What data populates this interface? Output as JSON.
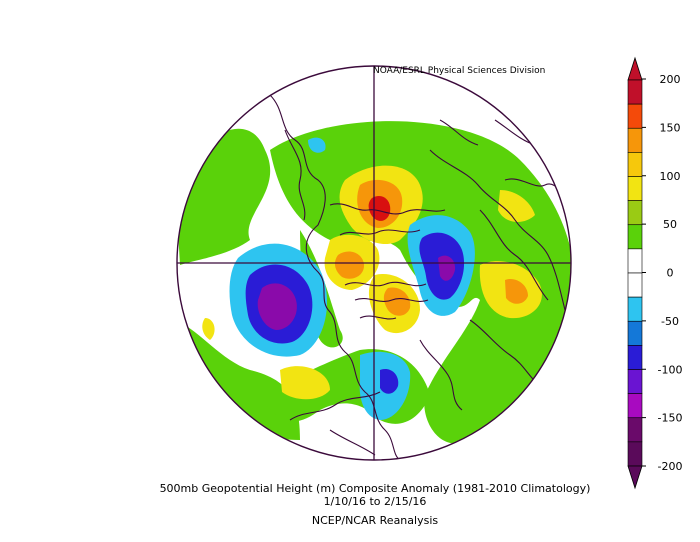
{
  "credit": "NOAA/ESRL Physical Sciences Division",
  "caption": {
    "line1": "500mb Geopotential Height (m) Composite Anomaly (1981-2010 Climatology)",
    "line2": "1/10/16   to 2/15/16",
    "line3": "NCEP/NCAR Reanalysis"
  },
  "colorbar": {
    "ticks": [
      "200",
      "150",
      "100",
      "50",
      "0",
      "-50",
      "-100",
      "-150",
      "-200"
    ],
    "colors": [
      "#c0102a",
      "#f44a0a",
      "#f6960a",
      "#f6c80c",
      "#f2e412",
      "#9acb14",
      "#5ad20a",
      "#ffffff",
      "#ffffff",
      "#2ec4f0",
      "#1478d8",
      "#2a1cd6",
      "#6a14d2",
      "#a80ac0",
      "#6a0a6a",
      "#5a0a5a"
    ]
  },
  "anomaly_colors": {
    "positive_weak": "#5ad20a",
    "positive_mid": "#f2e412",
    "positive_strong": "#f6960a",
    "positive_max": "#d81010",
    "negative_weak": "#2ec4f0",
    "negative_mid": "#2a1cd6",
    "negative_max": "#8a0aaa",
    "coastline": "#3b0a3b"
  }
}
